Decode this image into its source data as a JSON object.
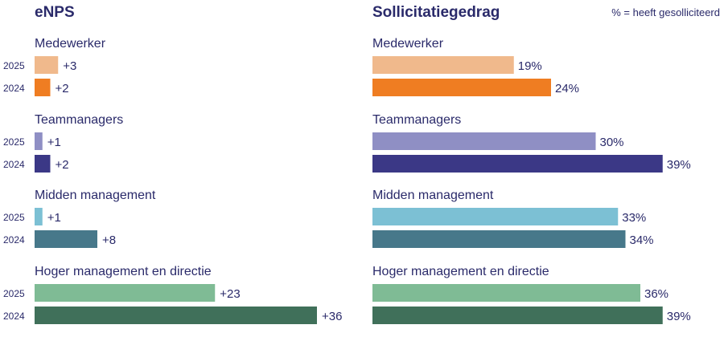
{
  "chart_data": [
    {
      "type": "bar",
      "orientation": "horizontal",
      "title": "eNPS",
      "unit": "eNPS score",
      "value_prefix": "+",
      "value_suffix": "",
      "xlim": [
        0,
        40
      ],
      "groups": [
        {
          "label": "Medewerker",
          "bars": [
            {
              "year": "2025",
              "value": 3,
              "label": "+3",
              "color": "#f0b98c"
            },
            {
              "year": "2024",
              "value": 2,
              "label": "+2",
              "color": "#ef7d22"
            }
          ]
        },
        {
          "label": "Teammanagers",
          "bars": [
            {
              "year": "2025",
              "value": 1,
              "label": "+1",
              "color": "#8f8fc4"
            },
            {
              "year": "2024",
              "value": 2,
              "label": "+2",
              "color": "#3b3886"
            }
          ]
        },
        {
          "label": "Midden management",
          "bars": [
            {
              "year": "2025",
              "value": 1,
              "label": "+1",
              "color": "#7cc0d4"
            },
            {
              "year": "2024",
              "value": 8,
              "label": "+8",
              "color": "#47788a"
            }
          ]
        },
        {
          "label": "Hoger management en directie",
          "bars": [
            {
              "year": "2025",
              "value": 23,
              "label": "+23",
              "color": "#7fbb95"
            },
            {
              "year": "2024",
              "value": 36,
              "label": "+36",
              "color": "#40705a"
            }
          ]
        }
      ]
    },
    {
      "type": "bar",
      "orientation": "horizontal",
      "title": "Sollicitatiegedrag",
      "note": "% = heeft gesolliciteerd",
      "unit": "percent",
      "xlim": [
        0,
        40
      ],
      "groups": [
        {
          "label": "Medewerker",
          "bars": [
            {
              "year": "2025",
              "value": 19,
              "label": "19%",
              "color": "#f0b98c"
            },
            {
              "year": "2024",
              "value": 24,
              "label": "24%",
              "color": "#ef7d22"
            }
          ]
        },
        {
          "label": "Teammanagers",
          "bars": [
            {
              "year": "2025",
              "value": 30,
              "label": "30%",
              "color": "#8f8fc4"
            },
            {
              "year": "2024",
              "value": 39,
              "label": "39%",
              "color": "#3b3886"
            }
          ]
        },
        {
          "label": "Midden management",
          "bars": [
            {
              "year": "2025",
              "value": 33,
              "label": "33%",
              "color": "#7cc0d4"
            },
            {
              "year": "2024",
              "value": 34,
              "label": "34%",
              "color": "#47788a"
            }
          ]
        },
        {
          "label": "Hoger management en directie",
          "bars": [
            {
              "year": "2025",
              "value": 36,
              "label": "36%",
              "color": "#7fbb95"
            },
            {
              "year": "2024",
              "value": 39,
              "label": "39%",
              "color": "#40705a"
            }
          ]
        }
      ]
    }
  ]
}
